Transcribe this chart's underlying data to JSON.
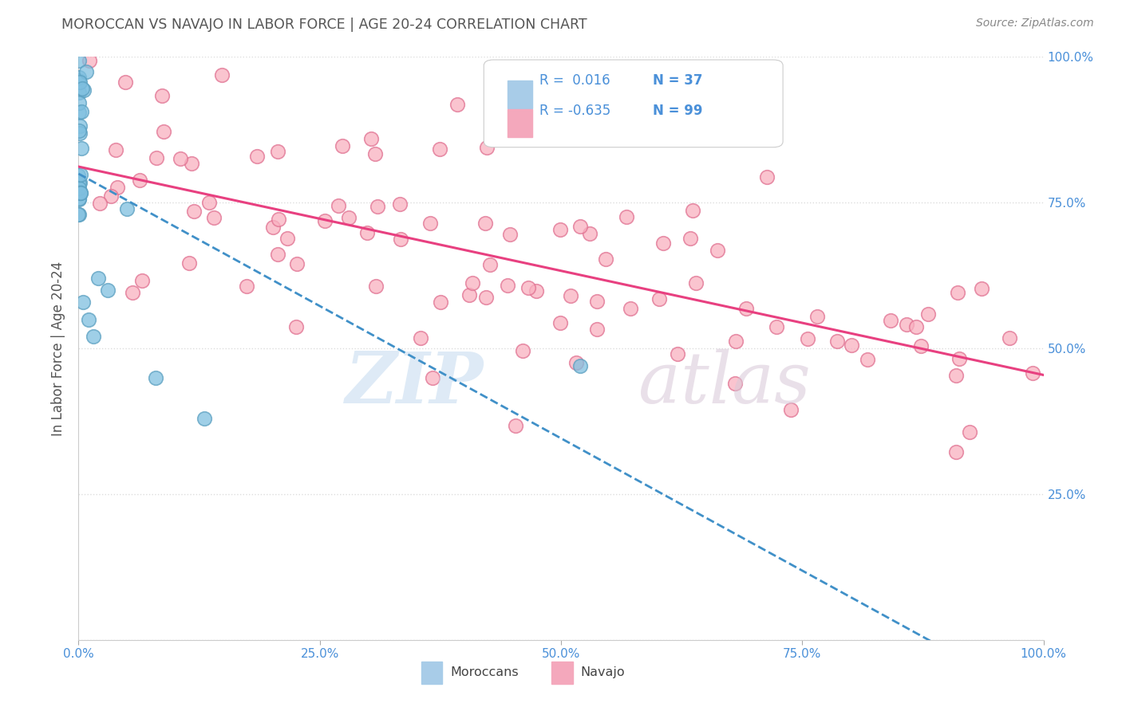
{
  "title": "MOROCCAN VS NAVAJO IN LABOR FORCE | AGE 20-24 CORRELATION CHART",
  "source": "Source: ZipAtlas.com",
  "ylabel": "In Labor Force | Age 20-24",
  "legend_r_moroccan": "0.016",
  "legend_n_moroccan": "37",
  "legend_r_navajo": "-0.635",
  "legend_n_navajo": "99",
  "moroccan_color": "#7fbfdf",
  "moroccan_edge": "#5a9fc0",
  "navajo_color": "#f9b0c0",
  "navajo_edge": "#e07090",
  "moroccan_line_color": "#4090c8",
  "navajo_line_color": "#e84080",
  "tick_color": "#4a90d9",
  "title_color": "#555555",
  "source_color": "#888888",
  "grid_color": "#dddddd",
  "legend_box_blue": "#a8cce8",
  "legend_box_pink": "#f4a8bc",
  "watermark_zip_color": "#c8ddf0",
  "watermark_atlas_color": "#d8c8d8"
}
